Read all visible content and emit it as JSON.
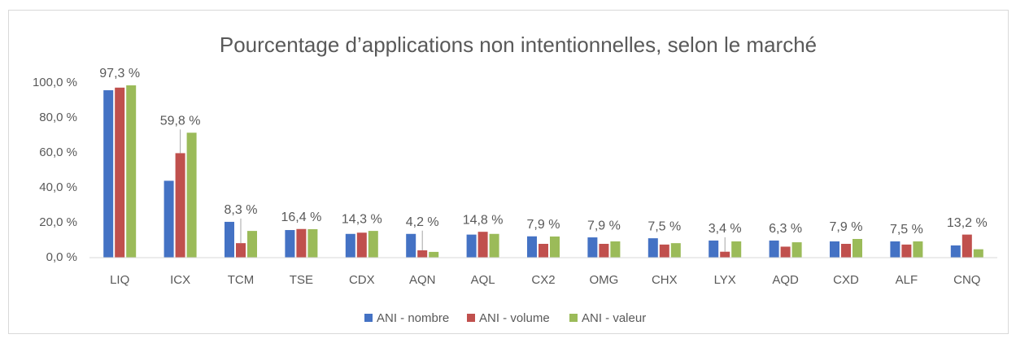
{
  "chart_data": {
    "type": "bar",
    "title": "Pourcentage d’applications non intentionnelles, selon le marché",
    "categories": [
      "LIQ",
      "ICX",
      "TCM",
      "TSE",
      "CDX",
      "AQN",
      "AQL",
      "CX2",
      "OMG",
      "CHX",
      "LYX",
      "AQD",
      "CXD",
      "ALF",
      "CNQ"
    ],
    "series": [
      {
        "name": "ANI - nombre",
        "color": "#4472c4",
        "values": [
          95.8,
          44,
          20.5,
          15.8,
          13.6,
          13.6,
          13.2,
          12.2,
          11.6,
          11.1,
          9.8,
          9.8,
          9.3,
          9.3,
          7.0
        ]
      },
      {
        "name": "ANI - volume",
        "color": "#c0504d",
        "values": [
          97.3,
          59.8,
          8.3,
          16.4,
          14.3,
          4.2,
          14.8,
          7.9,
          7.9,
          7.5,
          3.4,
          6.3,
          7.9,
          7.5,
          13.2
        ],
        "value_labels": [
          "97,3 %",
          "59,8 %",
          "8,3 %",
          "16,4 %",
          "14,3 %",
          "4,2 %",
          "14,8 %",
          "7,9 %",
          "7,9 %",
          "7,5 %",
          "3,4 %",
          "6,3 %",
          "7,9 %",
          "7,5 %",
          "13,2 %"
        ]
      },
      {
        "name": "ANI - valeur",
        "color": "#9bbb59",
        "values": [
          98.6,
          71.5,
          15.3,
          16.3,
          15.3,
          3.3,
          13.6,
          12.1,
          9.3,
          8.3,
          9.3,
          8.8,
          10.7,
          9.3,
          4.8
        ]
      }
    ],
    "ylim": [
      0,
      100
    ],
    "yticks": [
      {
        "value": 0,
        "label": "0,0 %"
      },
      {
        "value": 20,
        "label": "20,0 %"
      },
      {
        "value": 40,
        "label": "40,0 %"
      },
      {
        "value": 60,
        "label": "60,0 %"
      },
      {
        "value": 80,
        "label": "80,0 %"
      },
      {
        "value": 100,
        "label": "100,0 %"
      }
    ],
    "grid": false,
    "legend": "bottom"
  }
}
